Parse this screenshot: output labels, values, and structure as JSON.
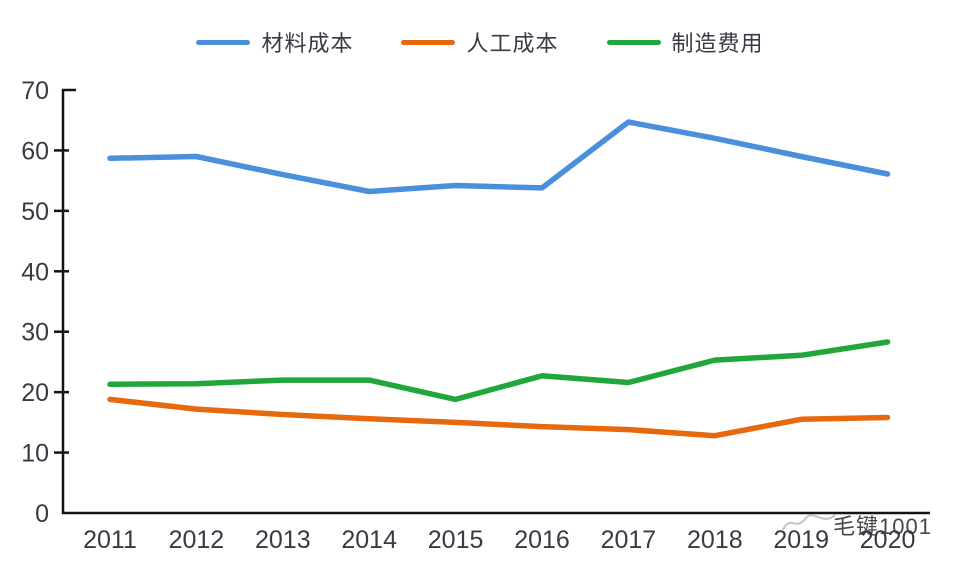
{
  "chart_data": {
    "type": "line",
    "title": "",
    "xlabel": "",
    "ylabel": "",
    "categories": [
      "2011",
      "2012",
      "2013",
      "2014",
      "2015",
      "2016",
      "2017",
      "2018",
      "2019",
      "2020"
    ],
    "series": [
      {
        "name": "材料成本",
        "color": "#4A8FDB",
        "values": [
          58.7,
          59.0,
          56.0,
          53.2,
          54.2,
          53.8,
          64.7,
          62.0,
          59.0,
          56.1
        ]
      },
      {
        "name": "人工成本",
        "color": "#E7690E",
        "values": [
          18.8,
          17.2,
          16.3,
          15.6,
          15.0,
          14.3,
          13.8,
          12.8,
          15.5,
          15.8
        ]
      },
      {
        "name": "制造费用",
        "color": "#21A63B",
        "values": [
          21.3,
          21.4,
          22.0,
          22.0,
          18.8,
          22.7,
          21.6,
          25.3,
          26.1,
          28.3
        ]
      }
    ],
    "y_ticks": [
      0,
      10,
      20,
      30,
      40,
      50,
      60,
      70
    ],
    "ylim": [
      0,
      70
    ],
    "grid": false,
    "legend_position": "top"
  },
  "watermark": {
    "text": "毛键1001"
  }
}
